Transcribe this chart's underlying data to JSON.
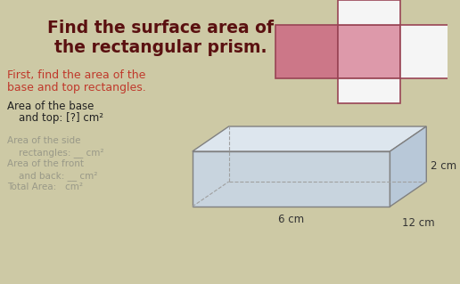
{
  "bg_color": "#cdc9a5",
  "title_line1": "Find the surface area of",
  "title_line2": "the rectangular prism.",
  "title_color": "#5a1010",
  "title_fontsize": 13.5,
  "subtitle_line1": "First, find the area of the",
  "subtitle_line2": "base and top rectangles.",
  "subtitle_color": "#c0392b",
  "subtitle_fontsize": 9,
  "text1_line1": "Area of the base",
  "text1_line2": "and top: [?] cm²",
  "text1_color": "#222222",
  "text1_fontsize": 8.5,
  "faded_lines": [
    [
      "Area of the side",
      0
    ],
    [
      "rectangles: __ cm²",
      1
    ],
    [
      "Area of the front",
      0
    ],
    [
      "and back: __ cm²",
      1
    ],
    [
      "Total Area:   cm²",
      0
    ]
  ],
  "faded_color": "#999988",
  "faded_fontsize": 7.5,
  "dim_2cm": "2 cm",
  "dim_12cm": "12 cm",
  "dim_6cm": "6 cm",
  "dim_fontsize": 8.5,
  "dim_color": "#333333",
  "net_pink_dark": "#cc7788",
  "net_pink_light": "#dd99aa",
  "net_outline": "#994455",
  "net_white": "#f5f5f5",
  "box_front": "#c8d4de",
  "box_top": "#dde6ee",
  "box_right": "#b8c8d8",
  "box_edge": "#808080",
  "box_edge_hidden": "#a0a0a0"
}
